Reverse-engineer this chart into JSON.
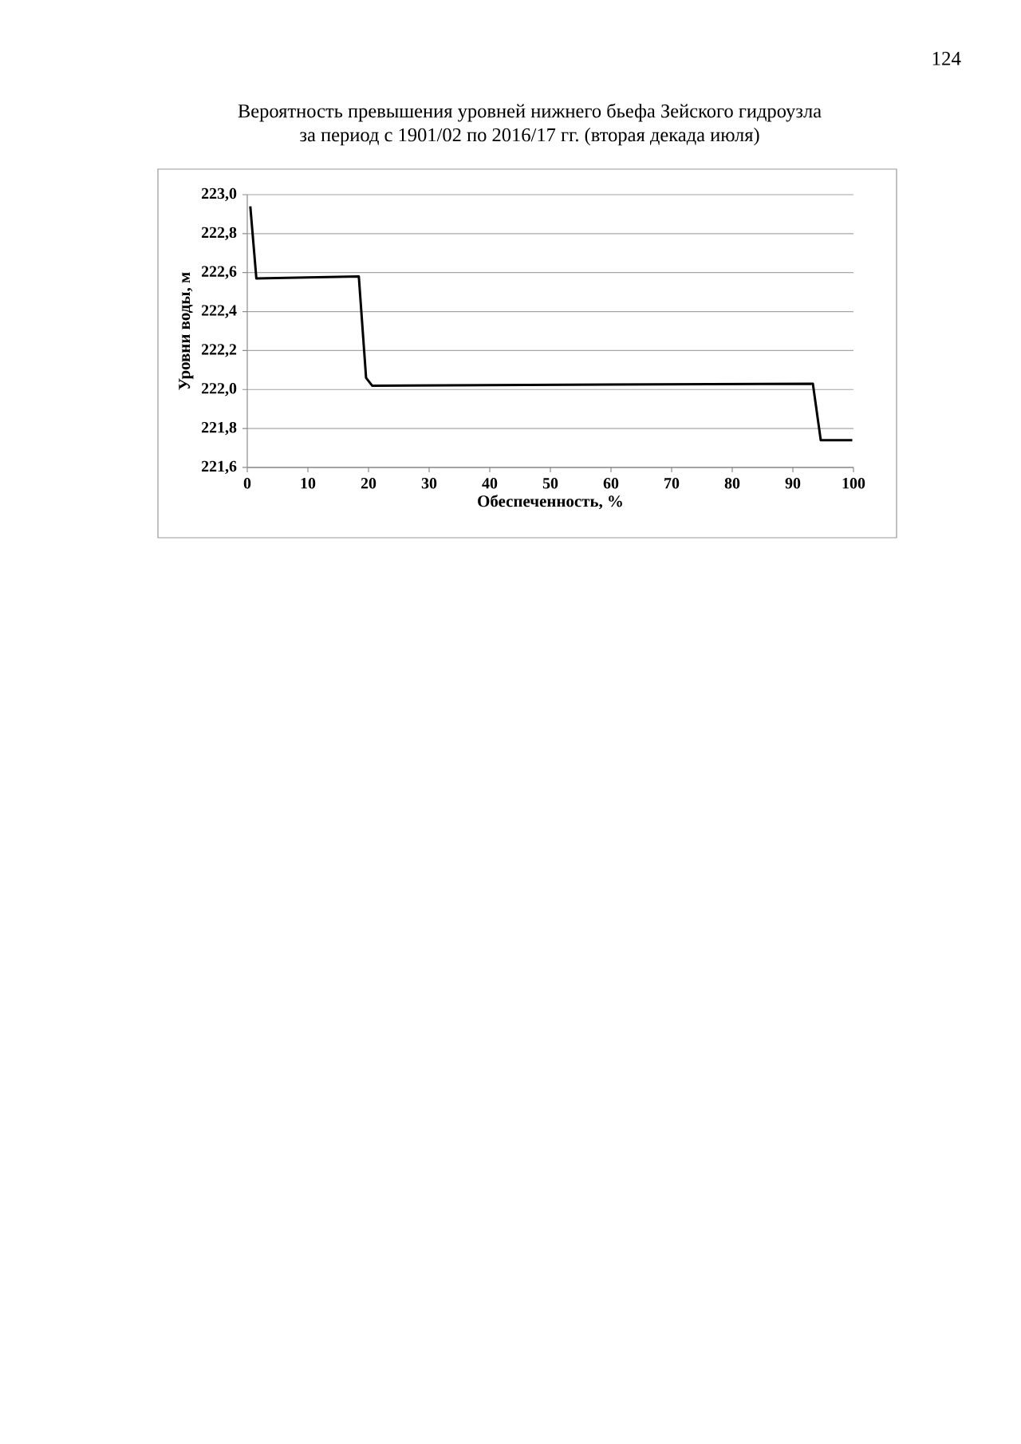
{
  "chart_data": {
    "type": "line",
    "title": "Вероятность превышения уровней нижнего бьефа Зейского гидроузла за период с 1901/02 по 2016/17 гг. (вторая декада июля)",
    "xlabel": "Обеспеченность, %",
    "ylabel": "Уровни воды, м",
    "x": [
      0.5,
      1.5,
      18.4,
      19.6,
      20.6,
      93.3,
      94.6,
      99.8
    ],
    "values": [
      222.94,
      222.57,
      222.58,
      222.06,
      222.02,
      222.03,
      221.74,
      221.74
    ],
    "color": "#000000",
    "xlim": [
      0,
      100
    ],
    "xticks": [
      0,
      10,
      20,
      30,
      40,
      50,
      60,
      70,
      80,
      90,
      100
    ],
    "ylim": [
      221.6,
      223.0
    ],
    "yticks": [
      {
        "value": 221.6,
        "label": "221,6"
      },
      {
        "value": 221.8,
        "label": "221,8"
      },
      {
        "value": 222.0,
        "label": "222,0"
      },
      {
        "value": 222.2,
        "label": "222,2"
      },
      {
        "value": 222.4,
        "label": "222,4"
      },
      {
        "value": 222.6,
        "label": "222,6"
      },
      {
        "value": 222.8,
        "label": "222,8"
      },
      {
        "value": 223.0,
        "label": "223,0"
      }
    ],
    "grid": "y",
    "annotations": [
      "124"
    ]
  }
}
